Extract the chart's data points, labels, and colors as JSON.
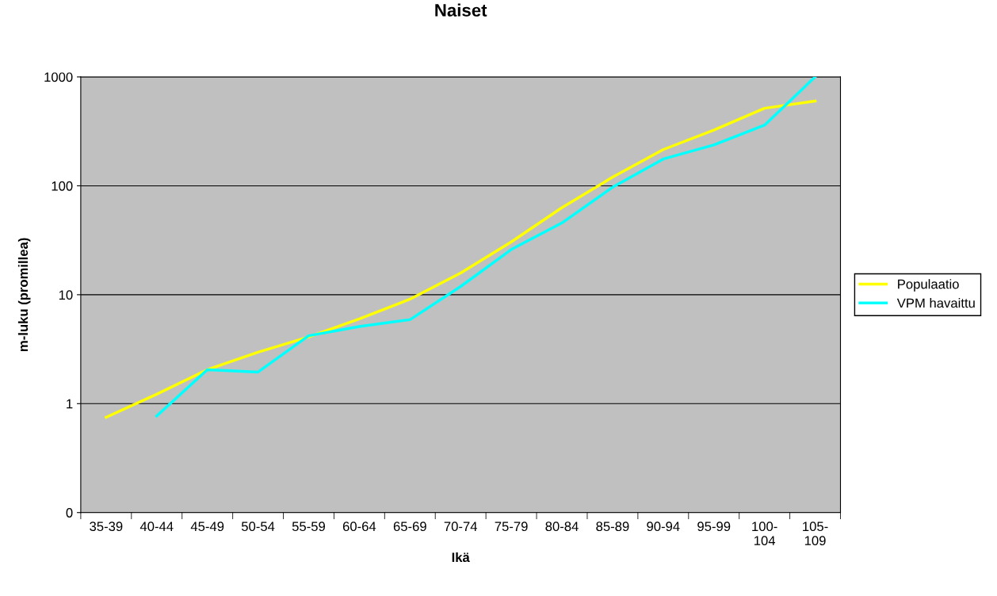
{
  "chart_data": {
    "type": "line",
    "title": "Naiset",
    "xlabel": "Ikä",
    "ylabel": "m-luku (promillea)",
    "categories": [
      "35-39",
      "40-44",
      "45-49",
      "50-54",
      "55-59",
      "60-64",
      "65-69",
      "70-74",
      "75-79",
      "80-84",
      "85-89",
      "90-94",
      "95-99",
      "100-\n104",
      "105-\n109"
    ],
    "series": [
      {
        "name": "Populaatio",
        "color": "#ffff00",
        "values": [
          0.75,
          1.22,
          2.05,
          2.97,
          4.1,
          6.0,
          9.1,
          15.8,
          30.5,
          63,
          120,
          215,
          325,
          515,
          600
        ]
      },
      {
        "name": "VPM havaittu",
        "color": "#00ffff",
        "values": [
          null,
          0.77,
          2.05,
          1.95,
          4.2,
          5.1,
          5.9,
          11.9,
          26,
          45.6,
          97,
          176,
          237,
          360,
          1000
        ]
      }
    ],
    "log": "y",
    "ylim": [
      0.1,
      1000
    ],
    "yticks": [
      {
        "value": 0.1,
        "label": "0"
      },
      1,
      10,
      100,
      1000
    ],
    "grid": "y",
    "legend": "right",
    "marker": "none",
    "line_style": "solid"
  }
}
